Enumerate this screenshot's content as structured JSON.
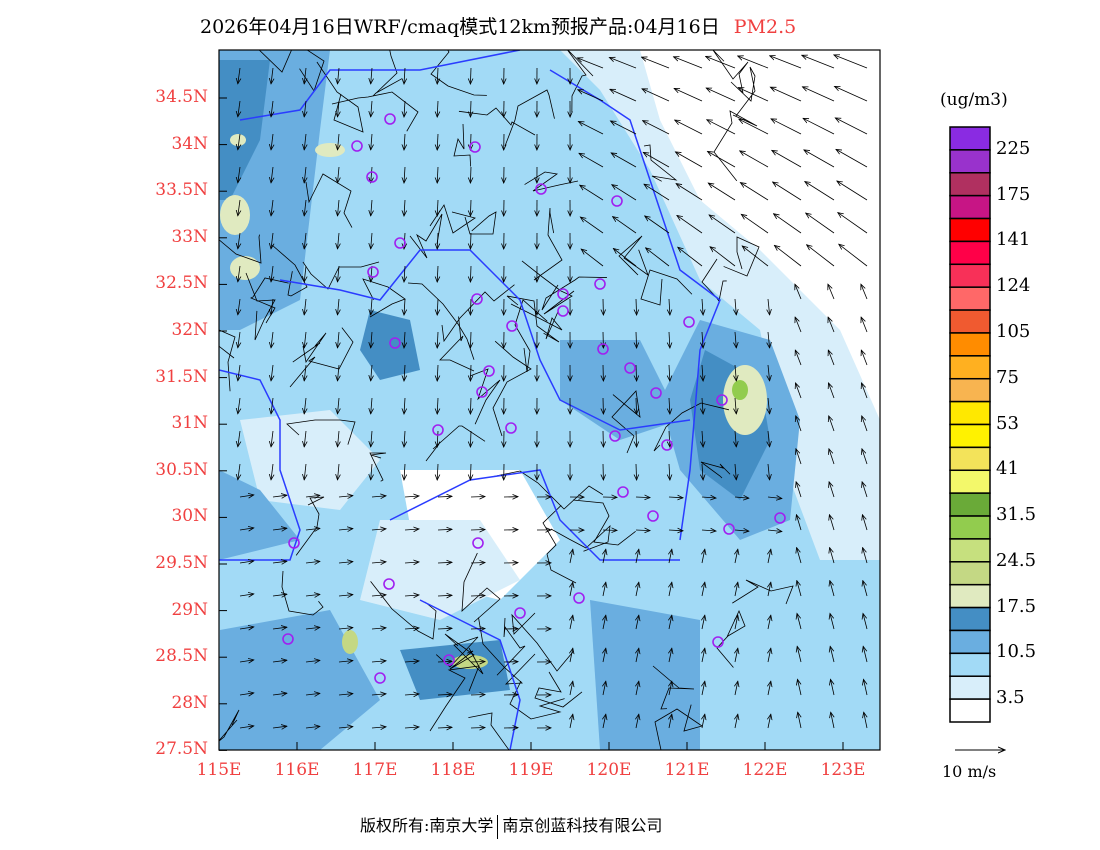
{
  "title": {
    "main": "2026年04月16日WRF/cmaq模式12km预报产品:04月16日",
    "species": "PM2.5"
  },
  "y_ticks": [
    "34.5N",
    "34N",
    "33.5N",
    "33N",
    "32.5N",
    "32N",
    "31.5N",
    "31N",
    "30.5N",
    "30N",
    "29.5N",
    "29N",
    "28.5N",
    "28N",
    "27.5N"
  ],
  "x_ticks": [
    "115E",
    "116E",
    "117E",
    "118E",
    "119E",
    "120E",
    "121E",
    "122E",
    "123E"
  ],
  "legend": {
    "unit": "(ug/m3)",
    "colors": [
      "#8a2be2",
      "#9932cc",
      "#b03060",
      "#c71585",
      "#ff0000",
      "#ff0048",
      "#f83058",
      "#ff6868",
      "#f05a30",
      "#ff8c00",
      "#ffb020",
      "#f8b450",
      "#ffe800",
      "#fff200",
      "#f3e35a",
      "#f3f86a",
      "#6aaa38",
      "#92cc4e",
      "#c6e07e",
      "#c4d884",
      "#e0eac0",
      "#448ec4",
      "#6aaee0",
      "#a2daf6",
      "#d8eefa",
      "#ffffff"
    ],
    "labels": [
      "225",
      "175",
      "141",
      "124",
      "105",
      "75",
      "53",
      "41",
      "31.5",
      "24.5",
      "17.5",
      "10.5",
      "3.5"
    ]
  },
  "wind_scale": "10 m/s",
  "footer": {
    "left": "版权所有:南京大学",
    "right": "南京创蓝科技有限公司"
  }
}
